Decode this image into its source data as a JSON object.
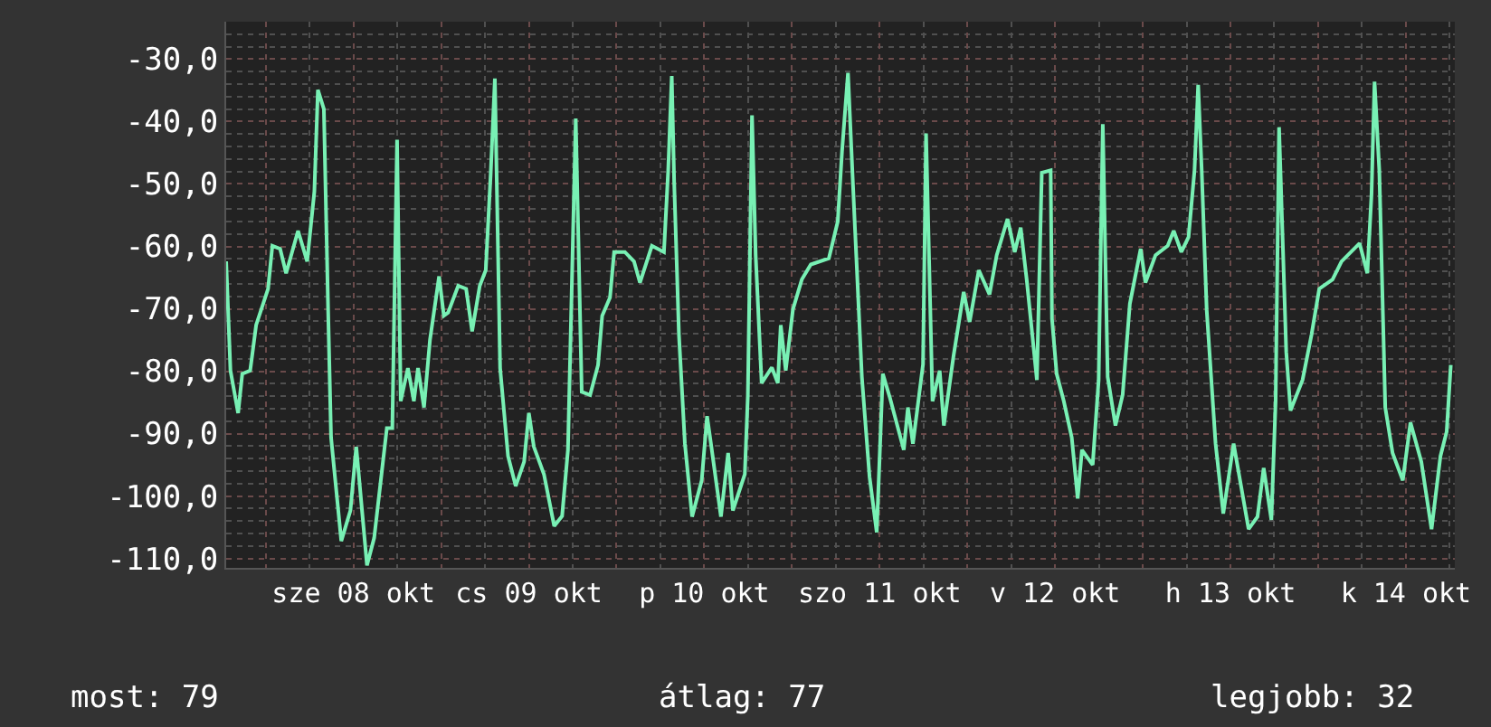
{
  "chart_data": {
    "type": "line",
    "x": [
      "--10-07T18:35",
      "--10-07T19:10",
      "--10-07T20:13",
      "--10-07T20:47",
      "--10-07T21:52",
      "--10-07T22:41",
      "--10-08T00:19",
      "--10-08T00:54",
      "--10-08T01:58",
      "--10-08T02:47",
      "--10-08T04:25",
      "--10-08T05:40",
      "--10-08T06:39",
      "--10-08T07:08",
      "--10-08T07:57",
      "--10-08T08:32",
      "--10-08T08:56",
      "--10-08T10:20",
      "--10-08T11:35",
      "--10-08T12:23",
      "--10-08T13:51",
      "--10-08T14:50",
      "--10-08T16:34",
      "--10-08T17:19",
      "--10-08T17:58",
      "--10-08T18:28",
      "--10-08T19:27",
      "--10-08T20:16",
      "--10-08T20:50",
      "--10-08T21:39",
      "--10-08T22:28",
      "--10-08T23:43",
      "--10-09T00:22",
      "--10-09T00:57",
      "--10-09T02:20",
      "--10-09T03:25",
      "--10-09T04:14",
      "--10-09T05:17",
      "--10-09T06:06",
      "--10-09T06:47",
      "--10-09T07:21",
      "--10-09T08:04",
      "--10-09T09:09",
      "--10-09T10:12",
      "--10-09T11:21",
      "--10-09T12:00",
      "--10-09T12:41",
      "--10-09T14:04",
      "--10-09T15:28",
      "--10-09T16:33",
      "--10-09T17:21",
      "--10-09T18:25",
      "--10-09T19:14",
      "--10-09T20:23",
      "--10-09T21:28",
      "--10-09T22:02",
      "--10-09T23:06",
      "--10-09T23:40",
      "--10-10T01:08",
      "--10-10T02:23",
      "--10-10T03:12",
      "--10-10T04:50",
      "--10-10T06:29",
      "--10-10T07:04",
      "--10-10T07:33",
      "--10-10T07:53",
      "--10-10T08:32",
      "--10-10T09:21",
      "--10-10T10:20",
      "--10-10T11:39",
      "--10-10T12:23",
      "--10-10T13:02",
      "--10-10T14:17",
      "--10-10T15:16",
      "--10-10T15:55",
      "--10-10T17:33",
      "--10-10T17:58",
      "--10-10T18:32",
      "--10-10T19:02",
      "--10-10T19:51",
      "--10-10T21:15",
      "--10-10T22:04",
      "--10-10T22:28",
      "--10-10T23:09",
      "--10-11T00:08",
      "--10-11T01:21",
      "--10-11T02:35",
      "--10-11T05:03",
      "--10-11T06:16",
      "--10-11T06:51",
      "--10-11T07:40",
      "--10-11T08:20",
      "--10-11T09:34",
      "--10-11T10:37",
      "--10-11T11:36",
      "--10-11T12:26",
      "--10-11T13:25",
      "--10-11T15:18",
      "--10-11T15:52",
      "--10-11T16:33",
      "--10-11T17:56",
      "--10-11T18:21",
      "--10-11T19:14",
      "--10-11T20:13",
      "--10-11T20:47",
      "--10-11T22:07",
      "--10-11T23:30",
      "--10-12T00:19",
      "--10-12T01:34",
      "--10-12T03:02",
      "--10-12T04:01",
      "--10-12T05:30",
      "--10-12T06:29",
      "--10-12T07:18",
      "--10-12T08:07",
      "--10-12T09:31",
      "--10-12T10:11",
      "--10-12T11:24",
      "--10-12T11:35",
      "--10-12T12:13",
      "--10-12T13:12",
      "--10-12T14:17",
      "--10-12T15:06",
      "--10-12T15:41",
      "--10-12T17:09",
      "--10-12T17:58",
      "--10-12T18:32",
      "--10-12T19:12",
      "--10-12T20:16",
      "--10-12T21:15",
      "--10-12T22:14",
      "--10-12T23:43",
      "--10-13T00:22",
      "--10-13T01:45",
      "--10-13T03:25",
      "--10-13T04:14",
      "--10-13T05:17",
      "--10-13T06:16",
      "--10-13T07:05",
      "--10-13T07:35",
      "--10-13T08:04",
      "--10-13T08:45",
      "--10-13T09:58",
      "--10-13T11:01",
      "--10-13T12:26",
      "--10-13T14:29",
      "--10-13T15:42",
      "--10-13T16:33",
      "--10-13T17:36",
      "--10-13T18:11",
      "--10-13T18:39",
      "--10-13T19:38",
      "--10-13T20:13",
      "--10-13T21:52",
      "--10-13T23:06",
      "--10-14T00:09",
      "--10-14T01:58",
      "--10-14T03:12",
      "--10-14T05:40",
      "--10-14T06:44",
      "--10-14T07:18",
      "--10-14T07:43",
      "--10-14T08:22",
      "--10-14T09:11",
      "--10-14T10:11",
      "--10-14T11:35",
      "--10-14T12:38",
      "--10-14T14:07",
      "--10-14T15:31",
      "--10-14T16:44",
      "--10-14T17:35",
      "--10-14T18:09"
    ],
    "series": [
      {
        "color": "#78f0b4",
        "values": [
          -62.4,
          -79.9,
          -86.7,
          -80.4,
          -79.9,
          -72.6,
          -66.8,
          -59.9,
          -60.4,
          -64.3,
          -57.5,
          -62.4,
          -51.2,
          -34.9,
          -38.0,
          -70.2,
          -90.6,
          -107.2,
          -102.3,
          -92.1,
          -111.1,
          -106.7,
          -89.1,
          -89.1,
          -42.9,
          -84.8,
          -79.5,
          -84.8,
          -79.5,
          -85.8,
          -75.0,
          -64.8,
          -71.1,
          -70.6,
          -66.3,
          -66.8,
          -73.6,
          -66.3,
          -63.8,
          -48.2,
          -33.1,
          -79.5,
          -93.6,
          -98.4,
          -94.5,
          -86.7,
          -92.1,
          -96.5,
          -104.8,
          -103.2,
          -92.6,
          -39.5,
          -83.3,
          -83.8,
          -79.0,
          -71.1,
          -68.2,
          -60.9,
          -60.9,
          -62.4,
          -65.8,
          -59.9,
          -60.9,
          -47.8,
          -32.7,
          -49.7,
          -74.1,
          -91.6,
          -103.3,
          -97.5,
          -87.2,
          -92.6,
          -103.3,
          -93.1,
          -102.3,
          -96.5,
          -83.8,
          -39.0,
          -61.4,
          -81.9,
          -79.4,
          -81.9,
          -72.6,
          -79.9,
          -70.1,
          -65.3,
          -62.9,
          -61.9,
          -56.0,
          -44.8,
          -32.2,
          -49.7,
          -80.9,
          -96.9,
          -105.8,
          -80.4,
          -84.3,
          -92.6,
          -85.8,
          -91.6,
          -78.9,
          -41.9,
          -84.8,
          -79.9,
          -88.7,
          -77.5,
          -67.3,
          -72.1,
          -63.8,
          -67.7,
          -61.4,
          -55.6,
          -60.9,
          -57.0,
          -65.3,
          -81.4,
          -48.2,
          -47.8,
          -71.6,
          -80.4,
          -84.8,
          -90.6,
          -100.4,
          -92.6,
          -95.0,
          -81.4,
          -40.4,
          -80.9,
          -88.7,
          -83.8,
          -69.2,
          -60.4,
          -65.8,
          -61.4,
          -59.9,
          -57.5,
          -60.9,
          -58.5,
          -47.8,
          -34.1,
          -47.8,
          -70.2,
          -91.6,
          -102.8,
          -91.6,
          -105.3,
          -103.3,
          -95.5,
          -103.8,
          -84.8,
          -40.9,
          -76.9,
          -86.3,
          -81.4,
          -74.1,
          -66.8,
          -65.3,
          -62.4,
          -59.5,
          -64.3,
          -51.7,
          -33.6,
          -47.8,
          -85.8,
          -93.1,
          -97.5,
          -88.2,
          -94.5,
          -105.3,
          -93.6,
          -89.7,
          -79.0
        ]
      }
    ],
    "xlim": [
      "--10-07T18:35",
      "--10-14T18:42"
    ],
    "xticks": [
      {
        "value": "--10-08T00:00",
        "label": null
      },
      {
        "value": "--10-08T12:00",
        "label": "sze 08 okt"
      },
      {
        "value": "--10-09T00:00",
        "label": null
      },
      {
        "value": "--10-09T12:00",
        "label": "cs 09 okt"
      },
      {
        "value": "--10-10T00:00",
        "label": null
      },
      {
        "value": "--10-10T12:00",
        "label": "p 10 okt"
      },
      {
        "value": "--10-11T00:00",
        "label": null
      },
      {
        "value": "--10-11T12:00",
        "label": "szo 11 okt"
      },
      {
        "value": "--10-12T00:00",
        "label": null
      },
      {
        "value": "--10-12T12:00",
        "label": "v 12 okt"
      },
      {
        "value": "--10-13T00:00",
        "label": null
      },
      {
        "value": "--10-13T12:00",
        "label": "h 13 okt"
      },
      {
        "value": "--10-14T00:00",
        "label": null
      },
      {
        "value": "--10-14T12:00",
        "label": "k 14 okt"
      }
    ],
    "ylim": [
      -111.5,
      -24
    ],
    "yticks": [
      {
        "value": -30,
        "label": "-30,0"
      },
      {
        "value": -40,
        "label": "-40,0"
      },
      {
        "value": -50,
        "label": "-50,0"
      },
      {
        "value": -60,
        "label": "-60,0"
      },
      {
        "value": -70,
        "label": "-70,0"
      },
      {
        "value": -80,
        "label": "-80,0"
      },
      {
        "value": -90,
        "label": "-90,0"
      },
      {
        "value": -100,
        "label": "-100,0"
      },
      {
        "value": -110,
        "label": "-110,0"
      }
    ],
    "grid": true,
    "marker": "none",
    "line_style": "solid",
    "annotations": [
      "most: 79",
      "átlag: 77",
      "legjobb: 32"
    ]
  }
}
